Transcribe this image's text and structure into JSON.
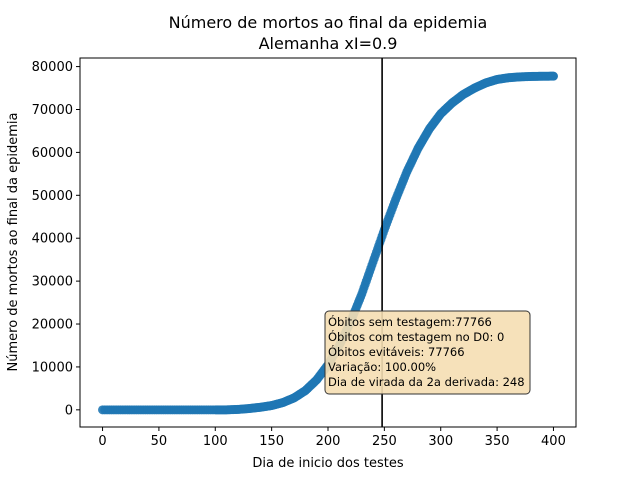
{
  "chart_data": {
    "type": "scatter",
    "title": [
      "Número de mortos ao final da epidemia",
      "Alemanha xI=0.9"
    ],
    "xlabel": "Dia de inicio dos testes",
    "ylabel": "Número de mortos ao final da epidemia",
    "xlim": [
      -20,
      420
    ],
    "ylim": [
      -4000,
      82000
    ],
    "xticks": [
      0,
      50,
      100,
      150,
      200,
      250,
      300,
      350,
      400
    ],
    "yticks": [
      0,
      10000,
      20000,
      30000,
      40000,
      50000,
      60000,
      70000,
      80000
    ],
    "grid": false,
    "vline_x": 248,
    "series": [
      {
        "color": "#1f77b4",
        "x": [
          0,
          20,
          40,
          60,
          80,
          100,
          110,
          120,
          130,
          140,
          150,
          160,
          170,
          180,
          190,
          200,
          210,
          220,
          230,
          240,
          250,
          260,
          270,
          280,
          290,
          300,
          310,
          320,
          330,
          340,
          350,
          360,
          370,
          380,
          390,
          400
        ],
        "y": [
          0,
          0,
          0,
          0,
          0,
          0,
          0,
          100,
          300,
          600,
          1000,
          1700,
          2800,
          4500,
          7000,
          10500,
          15000,
          20500,
          27000,
          34500,
          42000,
          49000,
          55500,
          61000,
          65500,
          69000,
          71500,
          73500,
          75000,
          76200,
          77000,
          77400,
          77600,
          77700,
          77750,
          77766
        ]
      }
    ],
    "annotation": {
      "lines": [
        "Óbitos sem testagem:77766",
        "Óbitos com testagem no D0: 0",
        "Óbitos evitáveis: 77766",
        "Variação: 100.00%",
        "Dia de virada da 2a derivada: 248"
      ],
      "facecolor": "#f5deb3",
      "edgecolor": "#333333"
    }
  }
}
